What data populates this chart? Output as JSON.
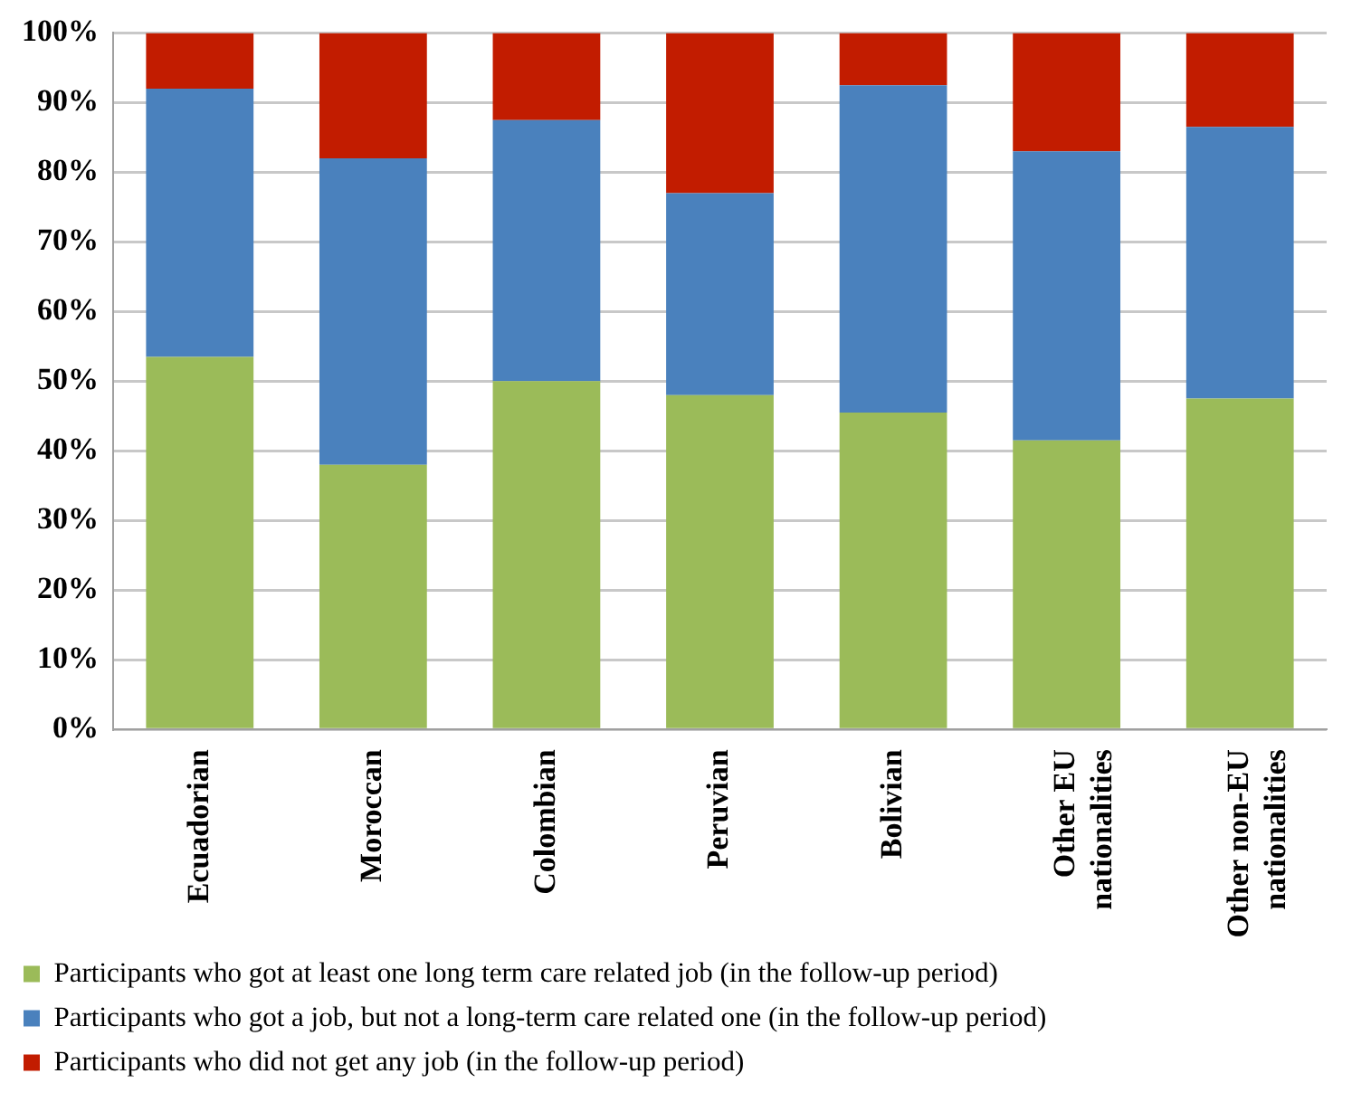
{
  "chart_data": {
    "type": "bar",
    "stacked": true,
    "categories": [
      "Ecuadorian",
      "Moroccan",
      "Colombian",
      "Peruvian",
      "Bolivian",
      "Other EU nationalities",
      "Other non-EU nationalities"
    ],
    "series": [
      {
        "name": "Participants who got at least one long term care related job (in the follow-up period)",
        "color": "#9bbb59",
        "values": [
          53.5,
          38,
          50,
          48,
          45.5,
          41.5,
          47.5
        ]
      },
      {
        "name": "Participants who got a job, but not a long-term care related one (in the follow-up period)",
        "color": "#4a81bd",
        "values": [
          38.5,
          44,
          37.5,
          29,
          47,
          41.5,
          39
        ]
      },
      {
        "name": "Participants who did not get any job (in the follow-up period)",
        "color": "#c21c00",
        "values": [
          8,
          18,
          12.5,
          23,
          7.5,
          17,
          13.5
        ]
      }
    ],
    "ylim": [
      0,
      100
    ],
    "yticks": [
      {
        "value": 0,
        "label": "0%"
      },
      {
        "value": 10,
        "label": "10%"
      },
      {
        "value": 20,
        "label": "20%"
      },
      {
        "value": 30,
        "label": "30%"
      },
      {
        "value": 40,
        "label": "40%"
      },
      {
        "value": 50,
        "label": "50%"
      },
      {
        "value": 60,
        "label": "60%"
      },
      {
        "value": 70,
        "label": "70%"
      },
      {
        "value": 80,
        "label": "80%"
      },
      {
        "value": 90,
        "label": "90%"
      },
      {
        "value": 100,
        "label": "100%"
      }
    ],
    "grid": "y",
    "legend": "bottom"
  }
}
